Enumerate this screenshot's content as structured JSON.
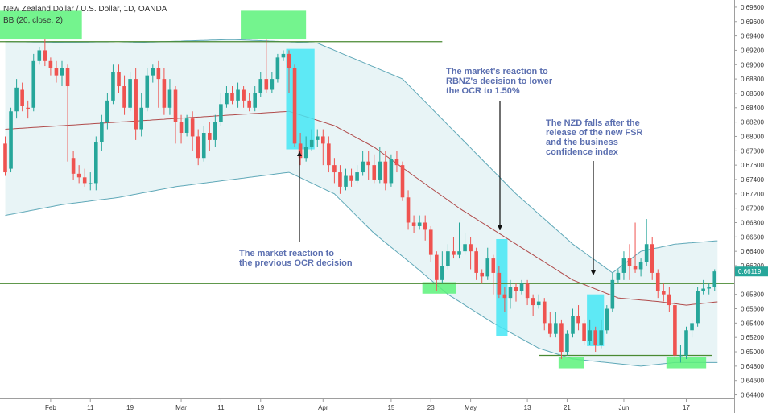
{
  "chart_data": {
    "type": "candlestick",
    "title": "New Zealand Dollar / U.S. Dollar, 1D, OANDA",
    "indicator_label": "BB (20, close, 2)",
    "ylim": [
      0.6435,
      0.699
    ],
    "y_ticks": [
      "0.69800",
      "0.69600",
      "0.69400",
      "0.69200",
      "0.69000",
      "0.68800",
      "0.68600",
      "0.68400",
      "0.68200",
      "0.68000",
      "0.67800",
      "0.67600",
      "0.67400",
      "0.67200",
      "0.67000",
      "0.66800",
      "0.66600",
      "0.66400",
      "0.66200",
      "0.65800",
      "0.65600",
      "0.65400",
      "0.65200",
      "0.65000",
      "0.64800",
      "0.64600",
      "0.64400"
    ],
    "x_ticks": [
      "Feb",
      "11",
      "19",
      "Mar",
      "11",
      "19",
      "Apr",
      "15",
      "23",
      "May",
      "13",
      "21",
      "Jun",
      "17"
    ],
    "last_price": "0.66119",
    "colors": {
      "up": "#26a69a",
      "down": "#ef5350",
      "band": "#5fa8b8",
      "basis": "#b04a4a",
      "band_fill": "#e8f4f6",
      "level": "#4a8a32",
      "highlight_green": "#5cf27a",
      "highlight_cyan": "#45e6f5",
      "price_label_bg": "#26a69a"
    },
    "candles": [
      [
        0.679,
        0.675,
        0.68,
        0.6745
      ],
      [
        0.6755,
        0.6835,
        0.684,
        0.675
      ],
      [
        0.6835,
        0.6868,
        0.688,
        0.6825
      ],
      [
        0.6865,
        0.6842,
        0.6875,
        0.6835
      ],
      [
        0.684,
        0.6838,
        0.685,
        0.6825
      ],
      [
        0.684,
        0.6905,
        0.6915,
        0.6835
      ],
      [
        0.6905,
        0.692,
        0.6925,
        0.69
      ],
      [
        0.692,
        0.6905,
        0.6935,
        0.6898
      ],
      [
        0.6905,
        0.6895,
        0.691,
        0.6885
      ],
      [
        0.6895,
        0.6885,
        0.6905,
        0.6875
      ],
      [
        0.6885,
        0.6895,
        0.6905,
        0.687
      ],
      [
        0.6895,
        0.687,
        0.69,
        0.6765
      ],
      [
        0.677,
        0.6748,
        0.678,
        0.674
      ],
      [
        0.6748,
        0.6743,
        0.676,
        0.6735
      ],
      [
        0.6743,
        0.6735,
        0.6755,
        0.673
      ],
      [
        0.6735,
        0.6735,
        0.675,
        0.6725
      ],
      [
        0.6735,
        0.6792,
        0.68,
        0.6725
      ],
      [
        0.6792,
        0.682,
        0.683,
        0.678
      ],
      [
        0.682,
        0.685,
        0.686,
        0.681
      ],
      [
        0.685,
        0.689,
        0.69,
        0.6845
      ],
      [
        0.689,
        0.687,
        0.69,
        0.686
      ],
      [
        0.687,
        0.684,
        0.6885,
        0.683
      ],
      [
        0.684,
        0.688,
        0.689,
        0.6835
      ],
      [
        0.688,
        0.681,
        0.6895,
        0.6795
      ],
      [
        0.681,
        0.684,
        0.686,
        0.68
      ],
      [
        0.684,
        0.6885,
        0.6895,
        0.6835
      ],
      [
        0.6885,
        0.6895,
        0.69,
        0.6875
      ],
      [
        0.6895,
        0.688,
        0.6905,
        0.684
      ],
      [
        0.688,
        0.684,
        0.6895,
        0.683
      ],
      [
        0.684,
        0.6865,
        0.688,
        0.683
      ],
      [
        0.6865,
        0.682,
        0.687,
        0.679
      ],
      [
        0.682,
        0.6805,
        0.683,
        0.679
      ],
      [
        0.6805,
        0.6825,
        0.683,
        0.68
      ],
      [
        0.6825,
        0.68,
        0.6835,
        0.678
      ],
      [
        0.68,
        0.677,
        0.681,
        0.676
      ],
      [
        0.677,
        0.6805,
        0.6815,
        0.6765
      ],
      [
        0.6805,
        0.6795,
        0.682,
        0.678
      ],
      [
        0.6795,
        0.682,
        0.683,
        0.6785
      ],
      [
        0.682,
        0.6845,
        0.686,
        0.6815
      ],
      [
        0.6845,
        0.686,
        0.687,
        0.684
      ],
      [
        0.686,
        0.685,
        0.687,
        0.6845
      ],
      [
        0.685,
        0.6865,
        0.6875,
        0.684
      ],
      [
        0.6865,
        0.685,
        0.687,
        0.684
      ],
      [
        0.685,
        0.684,
        0.686,
        0.6835
      ],
      [
        0.684,
        0.686,
        0.687,
        0.6835
      ],
      [
        0.686,
        0.688,
        0.689,
        0.6855
      ],
      [
        0.688,
        0.6865,
        0.6935,
        0.686
      ],
      [
        0.6865,
        0.688,
        0.689,
        0.686
      ],
      [
        0.688,
        0.691,
        0.6915,
        0.6875
      ],
      [
        0.691,
        0.6915,
        0.692,
        0.6905
      ],
      [
        0.6915,
        0.6895,
        0.692,
        0.686
      ],
      [
        0.6895,
        0.679,
        0.69,
        0.6785
      ],
      [
        0.679,
        0.677,
        0.6805,
        0.676
      ],
      [
        0.677,
        0.6785,
        0.68,
        0.6765
      ],
      [
        0.6785,
        0.6795,
        0.681,
        0.678
      ],
      [
        0.6795,
        0.68,
        0.681,
        0.6785
      ],
      [
        0.68,
        0.679,
        0.681,
        0.676
      ],
      [
        0.679,
        0.676,
        0.68,
        0.675
      ],
      [
        0.676,
        0.675,
        0.677,
        0.6735
      ],
      [
        0.675,
        0.673,
        0.676,
        0.672
      ],
      [
        0.673,
        0.6745,
        0.6755,
        0.6725
      ],
      [
        0.6745,
        0.6738,
        0.6755,
        0.673
      ],
      [
        0.6738,
        0.675,
        0.676,
        0.6735
      ],
      [
        0.675,
        0.6765,
        0.678,
        0.6745
      ],
      [
        0.6765,
        0.676,
        0.678,
        0.674
      ],
      [
        0.676,
        0.674,
        0.6775,
        0.6735
      ],
      [
        0.674,
        0.6765,
        0.6785,
        0.6735
      ],
      [
        0.6765,
        0.6735,
        0.678,
        0.6725
      ],
      [
        0.6735,
        0.6768,
        0.6775,
        0.673
      ],
      [
        0.6768,
        0.676,
        0.678,
        0.675
      ],
      [
        0.676,
        0.6715,
        0.6765,
        0.671
      ],
      [
        0.6715,
        0.668,
        0.6725,
        0.667
      ],
      [
        0.668,
        0.6675,
        0.669,
        0.6665
      ],
      [
        0.6675,
        0.668,
        0.669,
        0.667
      ],
      [
        0.668,
        0.667,
        0.669,
        0.6655
      ],
      [
        0.667,
        0.6635,
        0.6675,
        0.6625
      ],
      [
        0.6635,
        0.66,
        0.664,
        0.6585
      ],
      [
        0.66,
        0.662,
        0.664,
        0.6595
      ],
      [
        0.662,
        0.664,
        0.665,
        0.6615
      ],
      [
        0.664,
        0.6635,
        0.666,
        0.663
      ],
      [
        0.6635,
        0.664,
        0.668,
        0.663
      ],
      [
        0.664,
        0.665,
        0.6665,
        0.6635
      ],
      [
        0.665,
        0.664,
        0.666,
        0.6615
      ],
      [
        0.664,
        0.661,
        0.6645,
        0.66
      ],
      [
        0.661,
        0.6605,
        0.6615,
        0.6595
      ],
      [
        0.6605,
        0.663,
        0.6645,
        0.66
      ],
      [
        0.663,
        0.661,
        0.6635,
        0.658
      ],
      [
        0.661,
        0.658,
        0.662,
        0.6575
      ],
      [
        0.658,
        0.6575,
        0.659,
        0.6555
      ],
      [
        0.6575,
        0.659,
        0.66,
        0.656
      ],
      [
        0.659,
        0.6585,
        0.6595,
        0.657
      ],
      [
        0.6585,
        0.6595,
        0.66,
        0.658
      ],
      [
        0.6595,
        0.6575,
        0.66,
        0.6565
      ],
      [
        0.6575,
        0.6565,
        0.658,
        0.655
      ],
      [
        0.6565,
        0.657,
        0.658,
        0.656
      ],
      [
        0.657,
        0.654,
        0.6575,
        0.653
      ],
      [
        0.654,
        0.6525,
        0.6555,
        0.652
      ],
      [
        0.6525,
        0.654,
        0.6555,
        0.652
      ],
      [
        0.654,
        0.65,
        0.6545,
        0.649
      ],
      [
        0.65,
        0.6525,
        0.653,
        0.6495
      ],
      [
        0.6525,
        0.655,
        0.656,
        0.652
      ],
      [
        0.655,
        0.654,
        0.6565,
        0.653
      ],
      [
        0.654,
        0.6515,
        0.6545,
        0.651
      ],
      [
        0.6515,
        0.653,
        0.6545,
        0.651
      ],
      [
        0.653,
        0.651,
        0.6535,
        0.65
      ],
      [
        0.651,
        0.653,
        0.6545,
        0.6505
      ],
      [
        0.653,
        0.656,
        0.6565,
        0.6525
      ],
      [
        0.656,
        0.66,
        0.661,
        0.6555
      ],
      [
        0.66,
        0.661,
        0.6615,
        0.6595
      ],
      [
        0.661,
        0.663,
        0.664,
        0.66
      ],
      [
        0.663,
        0.662,
        0.665,
        0.66
      ],
      [
        0.662,
        0.6615,
        0.668,
        0.661
      ],
      [
        0.6615,
        0.6625,
        0.663,
        0.6605
      ],
      [
        0.6625,
        0.665,
        0.6685,
        0.662
      ],
      [
        0.665,
        0.661,
        0.666,
        0.66
      ],
      [
        0.661,
        0.6585,
        0.6615,
        0.6575
      ],
      [
        0.6585,
        0.658,
        0.6595,
        0.657
      ],
      [
        0.658,
        0.6565,
        0.659,
        0.6555
      ],
      [
        0.6565,
        0.6495,
        0.657,
        0.649
      ],
      [
        0.6495,
        0.6495,
        0.651,
        0.6485
      ],
      [
        0.6495,
        0.653,
        0.6535,
        0.649
      ],
      [
        0.653,
        0.654,
        0.6545,
        0.652
      ],
      [
        0.654,
        0.6585,
        0.659,
        0.6535
      ],
      [
        0.6585,
        0.6588,
        0.66,
        0.658
      ],
      [
        0.6588,
        0.659,
        0.6595,
        0.658
      ],
      [
        0.659,
        0.6612,
        0.6615,
        0.6585
      ]
    ],
    "bollinger": {
      "upper": [
        [
          0,
          0.6932
        ],
        [
          20,
          0.693
        ],
        [
          40,
          0.6935
        ],
        [
          55,
          0.693
        ],
        [
          70,
          0.688
        ],
        [
          80,
          0.68
        ],
        [
          90,
          0.672
        ],
        [
          100,
          0.665
        ],
        [
          107,
          0.661
        ],
        [
          112,
          0.664
        ],
        [
          118,
          0.665
        ],
        [
          126,
          0.6655
        ]
      ],
      "basis": [
        [
          0,
          0.681
        ],
        [
          10,
          0.6815
        ],
        [
          20,
          0.682
        ],
        [
          30,
          0.6825
        ],
        [
          40,
          0.683
        ],
        [
          50,
          0.6835
        ],
        [
          58,
          0.6815
        ],
        [
          65,
          0.6785
        ],
        [
          72,
          0.6745
        ],
        [
          80,
          0.67
        ],
        [
          90,
          0.665
        ],
        [
          100,
          0.66
        ],
        [
          108,
          0.6575
        ],
        [
          115,
          0.657
        ],
        [
          120,
          0.6565
        ],
        [
          126,
          0.657
        ]
      ],
      "lower": [
        [
          0,
          0.669
        ],
        [
          10,
          0.6705
        ],
        [
          20,
          0.6715
        ],
        [
          30,
          0.673
        ],
        [
          40,
          0.674
        ],
        [
          50,
          0.675
        ],
        [
          58,
          0.672
        ],
        [
          65,
          0.6665
        ],
        [
          72,
          0.662
        ],
        [
          78,
          0.658
        ],
        [
          86,
          0.654
        ],
        [
          94,
          0.6505
        ],
        [
          100,
          0.649
        ],
        [
          106,
          0.6485
        ],
        [
          112,
          0.648
        ],
        [
          118,
          0.6485
        ],
        [
          126,
          0.6485
        ]
      ]
    },
    "levels": [
      0.6932,
      0.6595,
      0.6495
    ],
    "annotations": [
      {
        "text": [
          "The market reaction to",
          "the previous OCR decision"
        ]
      },
      {
        "text": [
          "The market's reaction to",
          "RBNZ's decision to lower",
          " the OCR to 1.50%"
        ]
      },
      {
        "text": [
          "The NZD falls after the",
          "release of the new FSR",
          "and the business",
          "confidence index"
        ]
      }
    ]
  }
}
